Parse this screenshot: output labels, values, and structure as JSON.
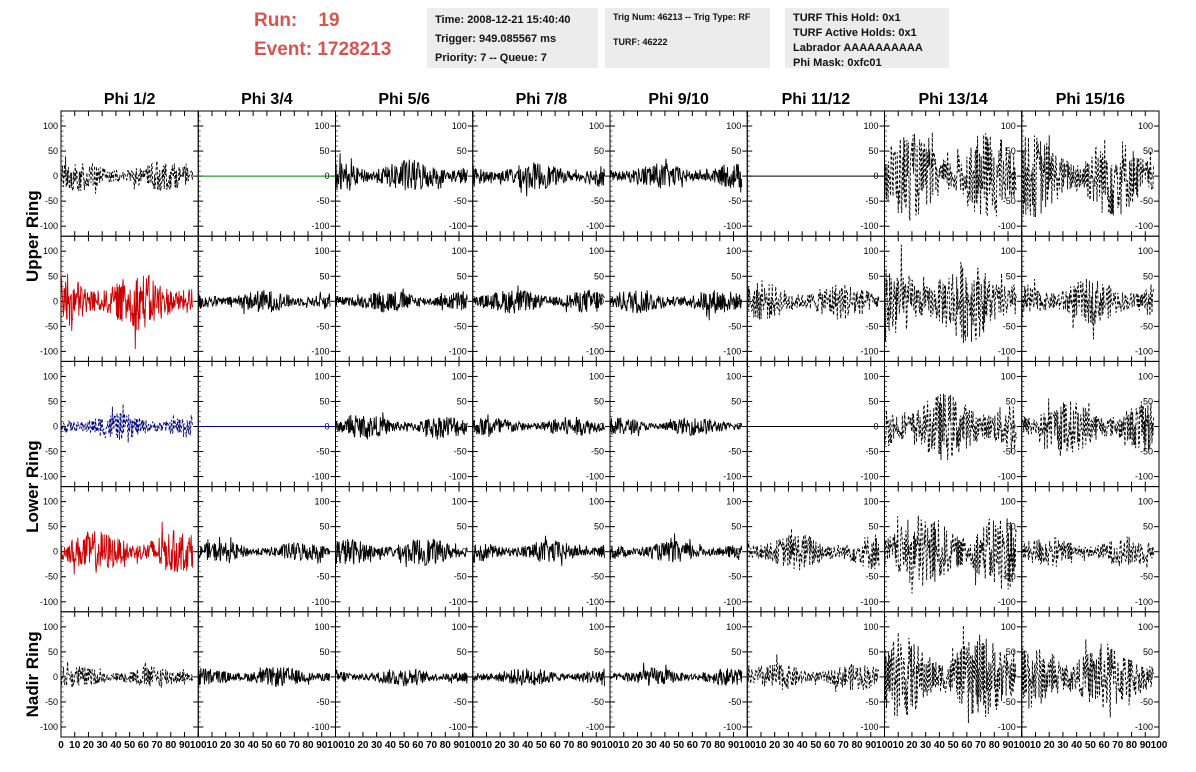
{
  "header": {
    "run_label": "Run:",
    "run_value": "19",
    "event_label": "Event:",
    "event_value": "1728213",
    "accent_color": "#d9534f",
    "info1": {
      "time": "Time: 2008-12-21 15:40:40",
      "trigger": "Trigger: 949.085567 ms",
      "priority": "Priority: 7 -- Queue: 7"
    },
    "info2": {
      "trig": "Trig Num: 46213 -- Trig Type: RF",
      "turf": "TURF: 46222"
    },
    "info3": {
      "hold": "TURF This Hold: 0x1",
      "active": "TURF Active Holds: 0x1",
      "labrador": "Labrador AAAAAAAAAA",
      "mask": "Phi Mask: 0xfc01"
    }
  },
  "chart_data": {
    "type": "line",
    "columns": [
      "Phi 1/2",
      "Phi 3/4",
      "Phi 5/6",
      "Phi 7/8",
      "Phi 9/10",
      "Phi 11/12",
      "Phi 13/14",
      "Phi 15/16"
    ],
    "rows": [
      "Upper Ring",
      "Upper Ring",
      "Lower Ring",
      "Lower Ring",
      "Nadir Ring"
    ],
    "row_labels": [
      "Upper Ring",
      "Lower Ring",
      "Nadir Ring"
    ],
    "xlim": [
      0,
      100
    ],
    "ylim": [
      -120,
      130
    ],
    "y_ticks": [
      -100,
      -50,
      0,
      50,
      100
    ],
    "x_ticks": [
      0,
      10,
      20,
      30,
      40,
      50,
      60,
      70,
      80,
      90,
      100
    ],
    "x_tick_labels": [
      "0",
      "10",
      "20",
      "30",
      "40",
      "50",
      "60",
      "70",
      "80",
      "90",
      "100"
    ],
    "panels": [
      [
        {
          "color": "#000000",
          "style": "dashed",
          "amp": 20
        },
        {
          "color": "#008000",
          "style": "flat",
          "amp": 0
        },
        {
          "color": "#000000",
          "style": "solid",
          "amp": 22
        },
        {
          "color": "#000000",
          "style": "solid",
          "amp": 18
        },
        {
          "color": "#000000",
          "style": "solid",
          "amp": 17
        },
        {
          "color": "#000000",
          "style": "flat",
          "amp": 0
        },
        {
          "color": "#000000",
          "style": "dashed",
          "amp": 58
        },
        {
          "color": "#000000",
          "style": "dashed",
          "amp": 55
        }
      ],
      [
        {
          "color": "#cc0000",
          "style": "solid",
          "amp": 38
        },
        {
          "color": "#000000",
          "style": "solid",
          "amp": 15
        },
        {
          "color": "#000000",
          "style": "solid",
          "amp": 15
        },
        {
          "color": "#000000",
          "style": "solid",
          "amp": 16
        },
        {
          "color": "#000000",
          "style": "solid",
          "amp": 16
        },
        {
          "color": "#000000",
          "style": "dashed",
          "amp": 25
        },
        {
          "color": "#000000",
          "style": "dashed",
          "amp": 55
        },
        {
          "color": "#000000",
          "style": "dashed",
          "amp": 30
        }
      ],
      [
        {
          "color": "#000080",
          "style": "dashed",
          "amp": 18
        },
        {
          "color": "#0000aa",
          "style": "flat",
          "amp": 0
        },
        {
          "color": "#000000",
          "style": "solid",
          "amp": 15
        },
        {
          "color": "#000000",
          "style": "solid",
          "amp": 13
        },
        {
          "color": "#000000",
          "style": "solid",
          "amp": 12
        },
        {
          "color": "#000000",
          "style": "flat",
          "amp": 0
        },
        {
          "color": "#000000",
          "style": "dashed",
          "amp": 45
        },
        {
          "color": "#000000",
          "style": "dashed",
          "amp": 35
        }
      ],
      [
        {
          "color": "#cc0000",
          "style": "solid",
          "amp": 28
        },
        {
          "color": "#000000",
          "style": "solid",
          "amp": 13
        },
        {
          "color": "#000000",
          "style": "solid",
          "amp": 18
        },
        {
          "color": "#000000",
          "style": "solid",
          "amp": 15
        },
        {
          "color": "#000000",
          "style": "solid",
          "amp": 14
        },
        {
          "color": "#000000",
          "style": "dashed",
          "amp": 25
        },
        {
          "color": "#000000",
          "style": "dashed",
          "amp": 52
        },
        {
          "color": "#000000",
          "style": "dashed",
          "amp": 20
        }
      ],
      [
        {
          "color": "#000000",
          "style": "dashed",
          "amp": 15
        },
        {
          "color": "#000000",
          "style": "solid",
          "amp": 13
        },
        {
          "color": "#000000",
          "style": "solid",
          "amp": 12
        },
        {
          "color": "#000000",
          "style": "solid",
          "amp": 12
        },
        {
          "color": "#000000",
          "style": "solid",
          "amp": 12
        },
        {
          "color": "#000000",
          "style": "dashed",
          "amp": 18
        },
        {
          "color": "#000000",
          "style": "dashed",
          "amp": 55
        },
        {
          "color": "#000000",
          "style": "dashed",
          "amp": 45
        }
      ]
    ]
  }
}
